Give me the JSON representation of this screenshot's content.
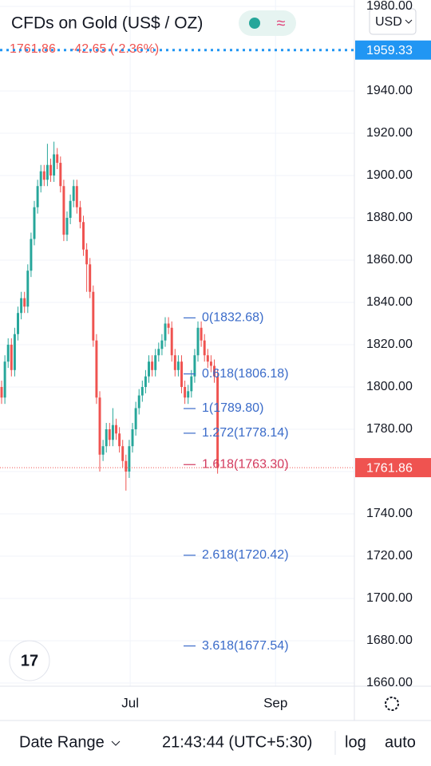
{
  "header": {
    "title": "CFDs on Gold (US$ / OZ)",
    "last": "1761.86",
    "change": "-42.65 (-2.36%)",
    "currency": "USD"
  },
  "chart_data": {
    "type": "candlestick",
    "ohlc": [
      [
        1800,
        1803,
        1792,
        1795
      ],
      [
        1795,
        1815,
        1792,
        1812
      ],
      [
        1812,
        1823,
        1809,
        1820
      ],
      [
        1820,
        1823,
        1805,
        1808
      ],
      [
        1808,
        1828,
        1805,
        1825
      ],
      [
        1825,
        1838,
        1822,
        1835
      ],
      [
        1835,
        1845,
        1832,
        1842
      ],
      [
        1842,
        1845,
        1835,
        1838
      ],
      [
        1838,
        1858,
        1835,
        1855
      ],
      [
        1855,
        1873,
        1852,
        1870
      ],
      [
        1870,
        1888,
        1867,
        1885
      ],
      [
        1885,
        1898,
        1882,
        1895
      ],
      [
        1895,
        1905,
        1892,
        1902
      ],
      [
        1902,
        1905,
        1895,
        1898
      ],
      [
        1898,
        1915,
        1895,
        1905
      ],
      [
        1905,
        1908,
        1897,
        1900
      ],
      [
        1900,
        1916,
        1897,
        1910
      ],
      [
        1910,
        1913,
        1903,
        1906
      ],
      [
        1906,
        1909,
        1892,
        1895
      ],
      [
        1895,
        1898,
        1869,
        1872
      ],
      [
        1872,
        1883,
        1869,
        1880
      ],
      [
        1880,
        1891,
        1877,
        1888
      ],
      [
        1888,
        1898,
        1885,
        1895
      ],
      [
        1895,
        1898,
        1882,
        1885
      ],
      [
        1885,
        1888,
        1875,
        1878
      ],
      [
        1878,
        1881,
        1862,
        1865
      ],
      [
        1865,
        1868,
        1845,
        1858
      ],
      [
        1858,
        1861,
        1842,
        1845
      ],
      [
        1845,
        1848,
        1819,
        1822
      ],
      [
        1822,
        1825,
        1792,
        1795
      ],
      [
        1795,
        1798,
        1760,
        1768
      ],
      [
        1768,
        1775,
        1765,
        1772
      ],
      [
        1772,
        1783,
        1769,
        1780
      ],
      [
        1780,
        1783,
        1772,
        1775
      ],
      [
        1775,
        1790,
        1772,
        1782
      ],
      [
        1782,
        1785,
        1775,
        1778
      ],
      [
        1778,
        1781,
        1769,
        1772
      ],
      [
        1772,
        1775,
        1762,
        1765
      ],
      [
        1765,
        1768,
        1751,
        1760
      ],
      [
        1760,
        1775,
        1757,
        1772
      ],
      [
        1772,
        1783,
        1769,
        1780
      ],
      [
        1780,
        1793,
        1777,
        1790
      ],
      [
        1790,
        1799,
        1787,
        1796
      ],
      [
        1796,
        1803,
        1793,
        1800
      ],
      [
        1800,
        1808,
        1797,
        1805
      ],
      [
        1805,
        1815,
        1802,
        1812
      ],
      [
        1812,
        1815,
        1805,
        1808
      ],
      [
        1808,
        1818,
        1805,
        1815
      ],
      [
        1815,
        1821,
        1812,
        1818
      ],
      [
        1818,
        1825,
        1815,
        1822
      ],
      [
        1822,
        1833,
        1819,
        1830
      ],
      [
        1830,
        1833,
        1825,
        1828
      ],
      [
        1828,
        1831,
        1812,
        1815
      ],
      [
        1815,
        1818,
        1805,
        1808
      ],
      [
        1808,
        1815,
        1805,
        1812
      ],
      [
        1812,
        1815,
        1797,
        1800
      ],
      [
        1800,
        1803,
        1792,
        1795
      ],
      [
        1795,
        1801,
        1792,
        1798
      ],
      [
        1798,
        1808,
        1795,
        1805
      ],
      [
        1805,
        1818,
        1802,
        1815
      ],
      [
        1815,
        1831,
        1812,
        1828
      ],
      [
        1828,
        1831,
        1819,
        1822
      ],
      [
        1822,
        1825,
        1812,
        1815
      ],
      [
        1815,
        1818,
        1809,
        1812
      ],
      [
        1812,
        1815,
        1807,
        1810
      ],
      [
        1810,
        1813,
        1802,
        1805
      ],
      [
        1805,
        1808,
        1759,
        1762
      ]
    ],
    "up_color": "#26a69a",
    "down_color": "#ef5350",
    "xlim": [
      -0.49,
      107.8
    ],
    "ylim": [
      1658.5,
      1983
    ],
    "xticks": [
      {
        "value": 39.3,
        "label": "Jul"
      },
      {
        "value": 83.7,
        "label": "Sep"
      }
    ],
    "yticks": [
      {
        "value": 1660,
        "label": "1660.00"
      },
      {
        "value": 1680,
        "label": "1680.00"
      },
      {
        "value": 1700,
        "label": "1700.00"
      },
      {
        "value": 1720,
        "label": "1720.00"
      },
      {
        "value": 1740,
        "label": "1740.00"
      },
      {
        "value": 1760,
        "label": "1760.00"
      },
      {
        "value": 1780,
        "label": "1780.00"
      },
      {
        "value": 1800,
        "label": "1800.00"
      },
      {
        "value": 1820,
        "label": "1820.00"
      },
      {
        "value": 1840,
        "label": "1840.00"
      },
      {
        "value": 1860,
        "label": "1860.00"
      },
      {
        "value": 1880,
        "label": "1880.00"
      },
      {
        "value": 1900,
        "label": "1900.00"
      },
      {
        "value": 1920,
        "label": "1920.00"
      },
      {
        "value": 1940,
        "label": "1940.00"
      },
      {
        "value": 1980,
        "label": "1980.00"
      }
    ],
    "price_lines": [
      {
        "value": 1959.33,
        "label": "1959.33",
        "color": "#2196f3"
      },
      {
        "value": 1761.86,
        "label": "1761.86",
        "color": "#ef5350"
      }
    ],
    "fib": [
      {
        "value": 1832.68,
        "label": "0(1832.68)",
        "color": "#3a6bc9"
      },
      {
        "value": 1806.18,
        "label": "0.618(1806.18)",
        "color": "#3a6bc9"
      },
      {
        "value": 1789.8,
        "label": "1(1789.80)",
        "color": "#3a6bc9"
      },
      {
        "value": 1778.14,
        "label": "1.272(1778.14)",
        "color": "#3a6bc9"
      },
      {
        "value": 1763.3,
        "label": "1.618(1763.30)",
        "color": "#d23b5f"
      },
      {
        "value": 1720.42,
        "label": "2.618(1720.42)",
        "color": "#3a6bc9"
      },
      {
        "value": 1677.54,
        "label": "3.618(1677.54)",
        "color": "#3a6bc9"
      }
    ],
    "grid": true
  },
  "footer": {
    "date_range": "Date Range",
    "time": "21:43:44 (UTC+5:30)",
    "log": "log",
    "auto": "auto"
  }
}
